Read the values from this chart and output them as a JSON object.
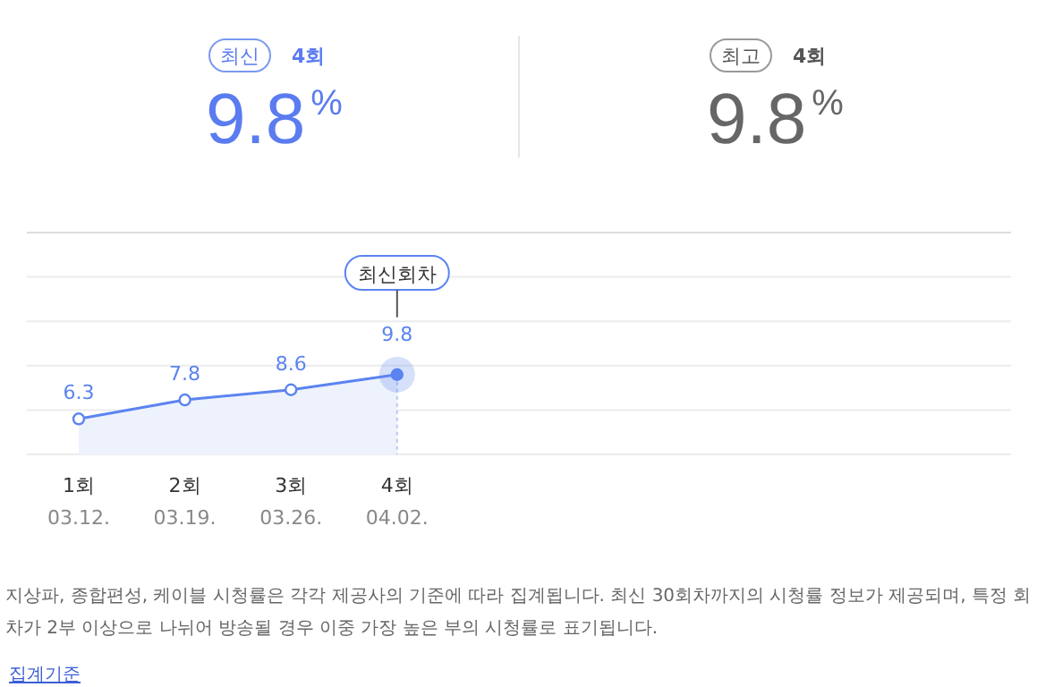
{
  "chart_data": [
    {
      "type": "other",
      "annotations": [
        "최신",
        "4회",
        "9.8$^{%}$",
        "최고",
        "4회",
        "9.8$^{%}$"
      ]
    },
    {
      "type": "line",
      "categories": [
        "1회\n03.12.",
        "2회\n03.19.",
        "3회\n03.26.",
        "4회\n04.02."
      ],
      "series": [
        {
          "type": "area",
          "color": "#5b84f0",
          "values": [
            6.3,
            7.8,
            8.6,
            9.8
          ]
        }
      ],
      "ylim": [
        3.5,
        21
      ],
      "yticks": [
        {
          "value": 3.5,
          "label": null
        },
        {
          "value": 7,
          "label": null
        },
        {
          "value": 10.5,
          "label": null
        },
        {
          "value": 14,
          "label": null
        },
        {
          "value": 17.5,
          "label": null
        },
        {
          "value": 21,
          "label": null
        }
      ],
      "ref_lines": [
        {
          "axis": "x",
          "value": "4회\n04.02.",
          "color": "#b8c8f5",
          "line_style": "dashed"
        }
      ],
      "data_labels": true,
      "marker": "circle",
      "grid": "y",
      "annotations": [
        "최신회차",
        "지상파, 종합편성, 케이블 시청률은 각각 제공사의 기준에 따라 집계됩니다. 최신 30회차까지의 시청률 정보가 제공되며, 특정 회차가 2부 이상으로 나뉘어 방송될 경우 이중 가장 높은 부의 시청률로 표기됩니다.",
        "집계기준"
      ]
    }
  ]
}
